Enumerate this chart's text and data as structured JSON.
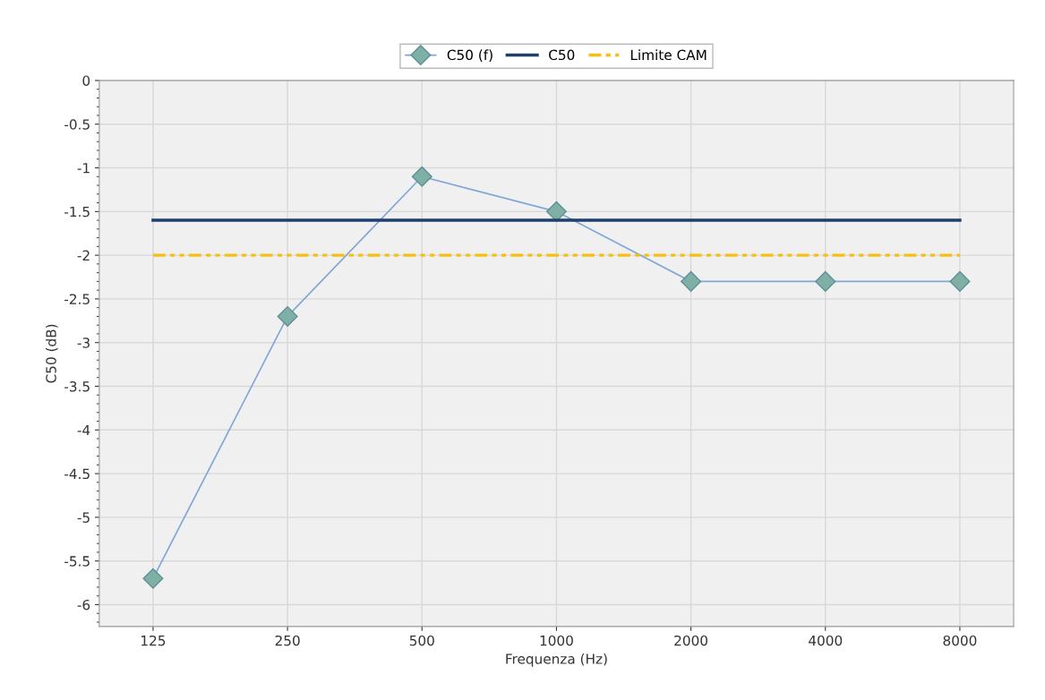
{
  "chart_data": {
    "type": "line",
    "xlabel": "Frequenza (Hz)",
    "ylabel": "C50 (dB)",
    "categories": [
      "125",
      "250",
      "500",
      "1000",
      "2000",
      "4000",
      "8000"
    ],
    "series": [
      {
        "name": "C50 (f)",
        "color": "#7fa6d6",
        "values": [
          -5.7,
          -2.7,
          -1.1,
          -1.5,
          -2.3,
          -2.3,
          -2.3
        ],
        "marker": "diamond",
        "line_style": "solid"
      },
      {
        "name": "C50",
        "color": "#1f3f6e",
        "values": [
          -1.6,
          -1.6,
          -1.6,
          -1.6,
          -1.6,
          -1.6,
          -1.6
        ],
        "marker": "none",
        "line_style": "solid"
      },
      {
        "name": "Limite CAM",
        "color": "#f5c010",
        "values": [
          -2,
          -2,
          -2,
          -2,
          -2,
          -2,
          -2
        ],
        "marker": "none",
        "line_style": "dashed"
      }
    ],
    "ylim": [
      -6.25,
      0
    ],
    "yticks": [
      -6,
      -5.5,
      -5,
      -4.5,
      -4,
      -3.5,
      -3,
      -2.5,
      -2,
      -1.5,
      -1,
      -0.5,
      0
    ],
    "grid": true,
    "legend": "top"
  }
}
